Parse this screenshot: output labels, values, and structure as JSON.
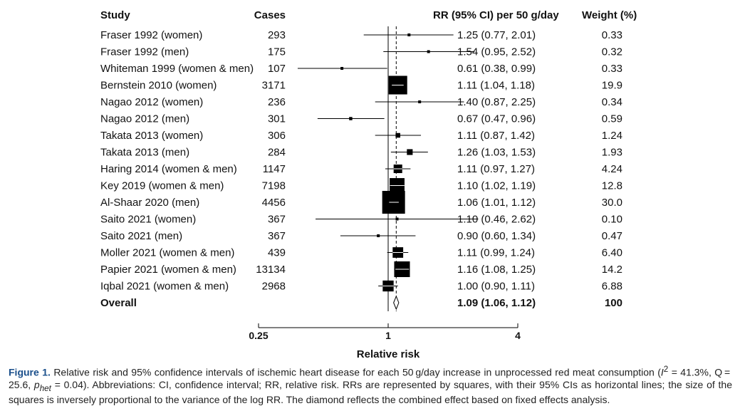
{
  "chart_data": {
    "type": "forest",
    "columns": {
      "study": "Study",
      "cases": "Cases",
      "rr": "RR (95% CI) per 50 g/day",
      "weight": "Weight (%)"
    },
    "rows": [
      {
        "study": "Fraser 1992 (women)",
        "cases": "293",
        "rr": 1.25,
        "lo": 0.77,
        "hi": 2.01,
        "rr_text": "1.25 (0.77, 2.01)",
        "weight": 0.33,
        "weight_text": "0.33"
      },
      {
        "study": "Fraser 1992 (men)",
        "cases": "175",
        "rr": 1.54,
        "lo": 0.95,
        "hi": 2.52,
        "rr_text": "1.54 (0.95, 2.52)",
        "weight": 0.32,
        "weight_text": "0.32"
      },
      {
        "study": "Whiteman 1999 (women & men)",
        "cases": "107",
        "rr": 0.61,
        "lo": 0.38,
        "hi": 0.99,
        "rr_text": "0.61 (0.38, 0.99)",
        "weight": 0.33,
        "weight_text": "0.33"
      },
      {
        "study": "Bernstein 2010 (women)",
        "cases": "3171",
        "rr": 1.11,
        "lo": 1.04,
        "hi": 1.18,
        "rr_text": "1.11 (1.04, 1.18)",
        "weight": 19.9,
        "weight_text": "19.9"
      },
      {
        "study": "Nagao 2012 (women)",
        "cases": "236",
        "rr": 1.4,
        "lo": 0.87,
        "hi": 2.25,
        "rr_text": "1.40 (0.87, 2.25)",
        "weight": 0.34,
        "weight_text": "0.34"
      },
      {
        "study": "Nagao 2012 (men)",
        "cases": "301",
        "rr": 0.67,
        "lo": 0.47,
        "hi": 0.96,
        "rr_text": "0.67 (0.47, 0.96)",
        "weight": 0.59,
        "weight_text": "0.59"
      },
      {
        "study": "Takata 2013 (women)",
        "cases": "306",
        "rr": 1.11,
        "lo": 0.87,
        "hi": 1.42,
        "rr_text": "1.11 (0.87, 1.42)",
        "weight": 1.24,
        "weight_text": "1.24"
      },
      {
        "study": "Takata 2013 (men)",
        "cases": "284",
        "rr": 1.26,
        "lo": 1.03,
        "hi": 1.53,
        "rr_text": "1.26 (1.03, 1.53)",
        "weight": 1.93,
        "weight_text": "1.93"
      },
      {
        "study": "Haring 2014 (women & men)",
        "cases": "1147",
        "rr": 1.11,
        "lo": 0.97,
        "hi": 1.27,
        "rr_text": "1.11 (0.97, 1.27)",
        "weight": 4.24,
        "weight_text": "4.24"
      },
      {
        "study": "Key 2019 (women & men)",
        "cases": "7198",
        "rr": 1.1,
        "lo": 1.02,
        "hi": 1.19,
        "rr_text": "1.10 (1.02, 1.19)",
        "weight": 12.8,
        "weight_text": "12.8"
      },
      {
        "study": "Al-Shaar 2020 (men)",
        "cases": "4456",
        "rr": 1.06,
        "lo": 1.01,
        "hi": 1.12,
        "rr_text": "1.06 (1.01, 1.12)",
        "weight": 30.0,
        "weight_text": "30.0"
      },
      {
        "study": "Saito 2021 (women)",
        "cases": "367",
        "rr": 1.1,
        "lo": 0.46,
        "hi": 2.62,
        "rr_text": "1.10 (0.46, 2.62)",
        "weight": 0.1,
        "weight_text": "0.10"
      },
      {
        "study": "Saito 2021 (men)",
        "cases": "367",
        "rr": 0.9,
        "lo": 0.6,
        "hi": 1.34,
        "rr_text": "0.90 (0.60, 1.34)",
        "weight": 0.47,
        "weight_text": "0.47"
      },
      {
        "study": "Moller 2021 (women & men)",
        "cases": "439",
        "rr": 1.11,
        "lo": 0.99,
        "hi": 1.24,
        "rr_text": "1.11 (0.99, 1.24)",
        "weight": 6.4,
        "weight_text": "6.40"
      },
      {
        "study": "Papier 2021 (women & men)",
        "cases": "13134",
        "rr": 1.16,
        "lo": 1.08,
        "hi": 1.25,
        "rr_text": "1.16 (1.08, 1.25)",
        "weight": 14.2,
        "weight_text": "14.2"
      },
      {
        "study": "Iqbal 2021 (women & men)",
        "cases": "2968",
        "rr": 1.0,
        "lo": 0.9,
        "hi": 1.11,
        "rr_text": "1.00 (0.90, 1.11)",
        "weight": 6.88,
        "weight_text": "6.88"
      }
    ],
    "overall": {
      "study": "Overall",
      "rr": 1.09,
      "lo": 1.06,
      "hi": 1.12,
      "rr_text": "1.09 (1.06, 1.12)",
      "weight_text": "100"
    },
    "x_axis": {
      "label": "Relative risk",
      "scale": "log",
      "ticks": [
        0.25,
        1,
        4
      ],
      "tick_labels": [
        "0.25",
        "1",
        "4"
      ],
      "reference_line": 1
    },
    "colors": {
      "marks": "#000000",
      "figure_label": "#1a4f8b"
    }
  },
  "caption": {
    "label": "Figure 1.",
    "part1": " Relative risk and 95% confidence intervals of ischemic heart disease for each 50 g/day increase in unprocessed red meat consumption (",
    "i2_symbol": "I",
    "i2_sup": "2",
    "i2_value": " = 41.3%, Q = 25.6, ",
    "p_symbol": "p",
    "p_sub": "het",
    "p_value": " = 0.04). Abbreviations: CI, confidence interval; RR, relative risk. RRs are represented by squares, with their 95% CIs as horizontal lines; the size of the squares is inversely proportional to the variance of the log RR. The diamond reflects the combined effect based on fixed effects analysis."
  }
}
